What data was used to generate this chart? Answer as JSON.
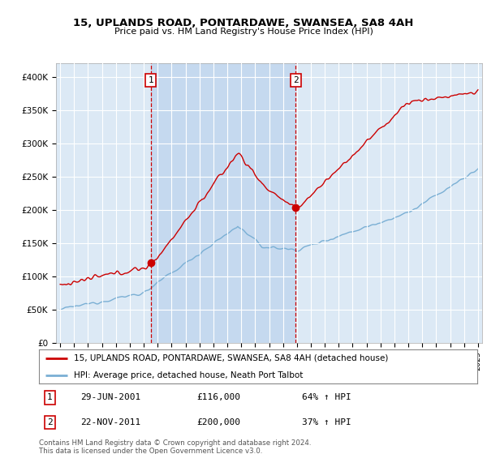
{
  "title": "15, UPLANDS ROAD, PONTARDAWE, SWANSEA, SA8 4AH",
  "subtitle": "Price paid vs. HM Land Registry's House Price Index (HPI)",
  "red_label": "15, UPLANDS ROAD, PONTARDAWE, SWANSEA, SA8 4AH (detached house)",
  "blue_label": "HPI: Average price, detached house, Neath Port Talbot",
  "transaction1_date": "29-JUN-2001",
  "transaction1_price": "£116,000",
  "transaction1_hpi": "64% ↑ HPI",
  "transaction1_year": 2001.5,
  "transaction2_date": "22-NOV-2011",
  "transaction2_price": "£200,000",
  "transaction2_hpi": "37% ↑ HPI",
  "transaction2_year": 2011.92,
  "background_color": "#dce9f5",
  "shaded_color": "#c5d9ef",
  "footer": "Contains HM Land Registry data © Crown copyright and database right 2024.\nThis data is licensed under the Open Government Licence v3.0.",
  "ylim_min": 0,
  "ylim_max": 420000,
  "yticks": [
    0,
    50000,
    100000,
    150000,
    200000,
    250000,
    300000,
    350000,
    400000
  ],
  "ytick_labels": [
    "£0",
    "£50K",
    "£100K",
    "£150K",
    "£200K",
    "£250K",
    "£300K",
    "£350K",
    "£400K"
  ],
  "red_color": "#cc0000",
  "blue_color": "#7aafd4",
  "xlim_min": 1994.7,
  "xlim_max": 2025.3
}
